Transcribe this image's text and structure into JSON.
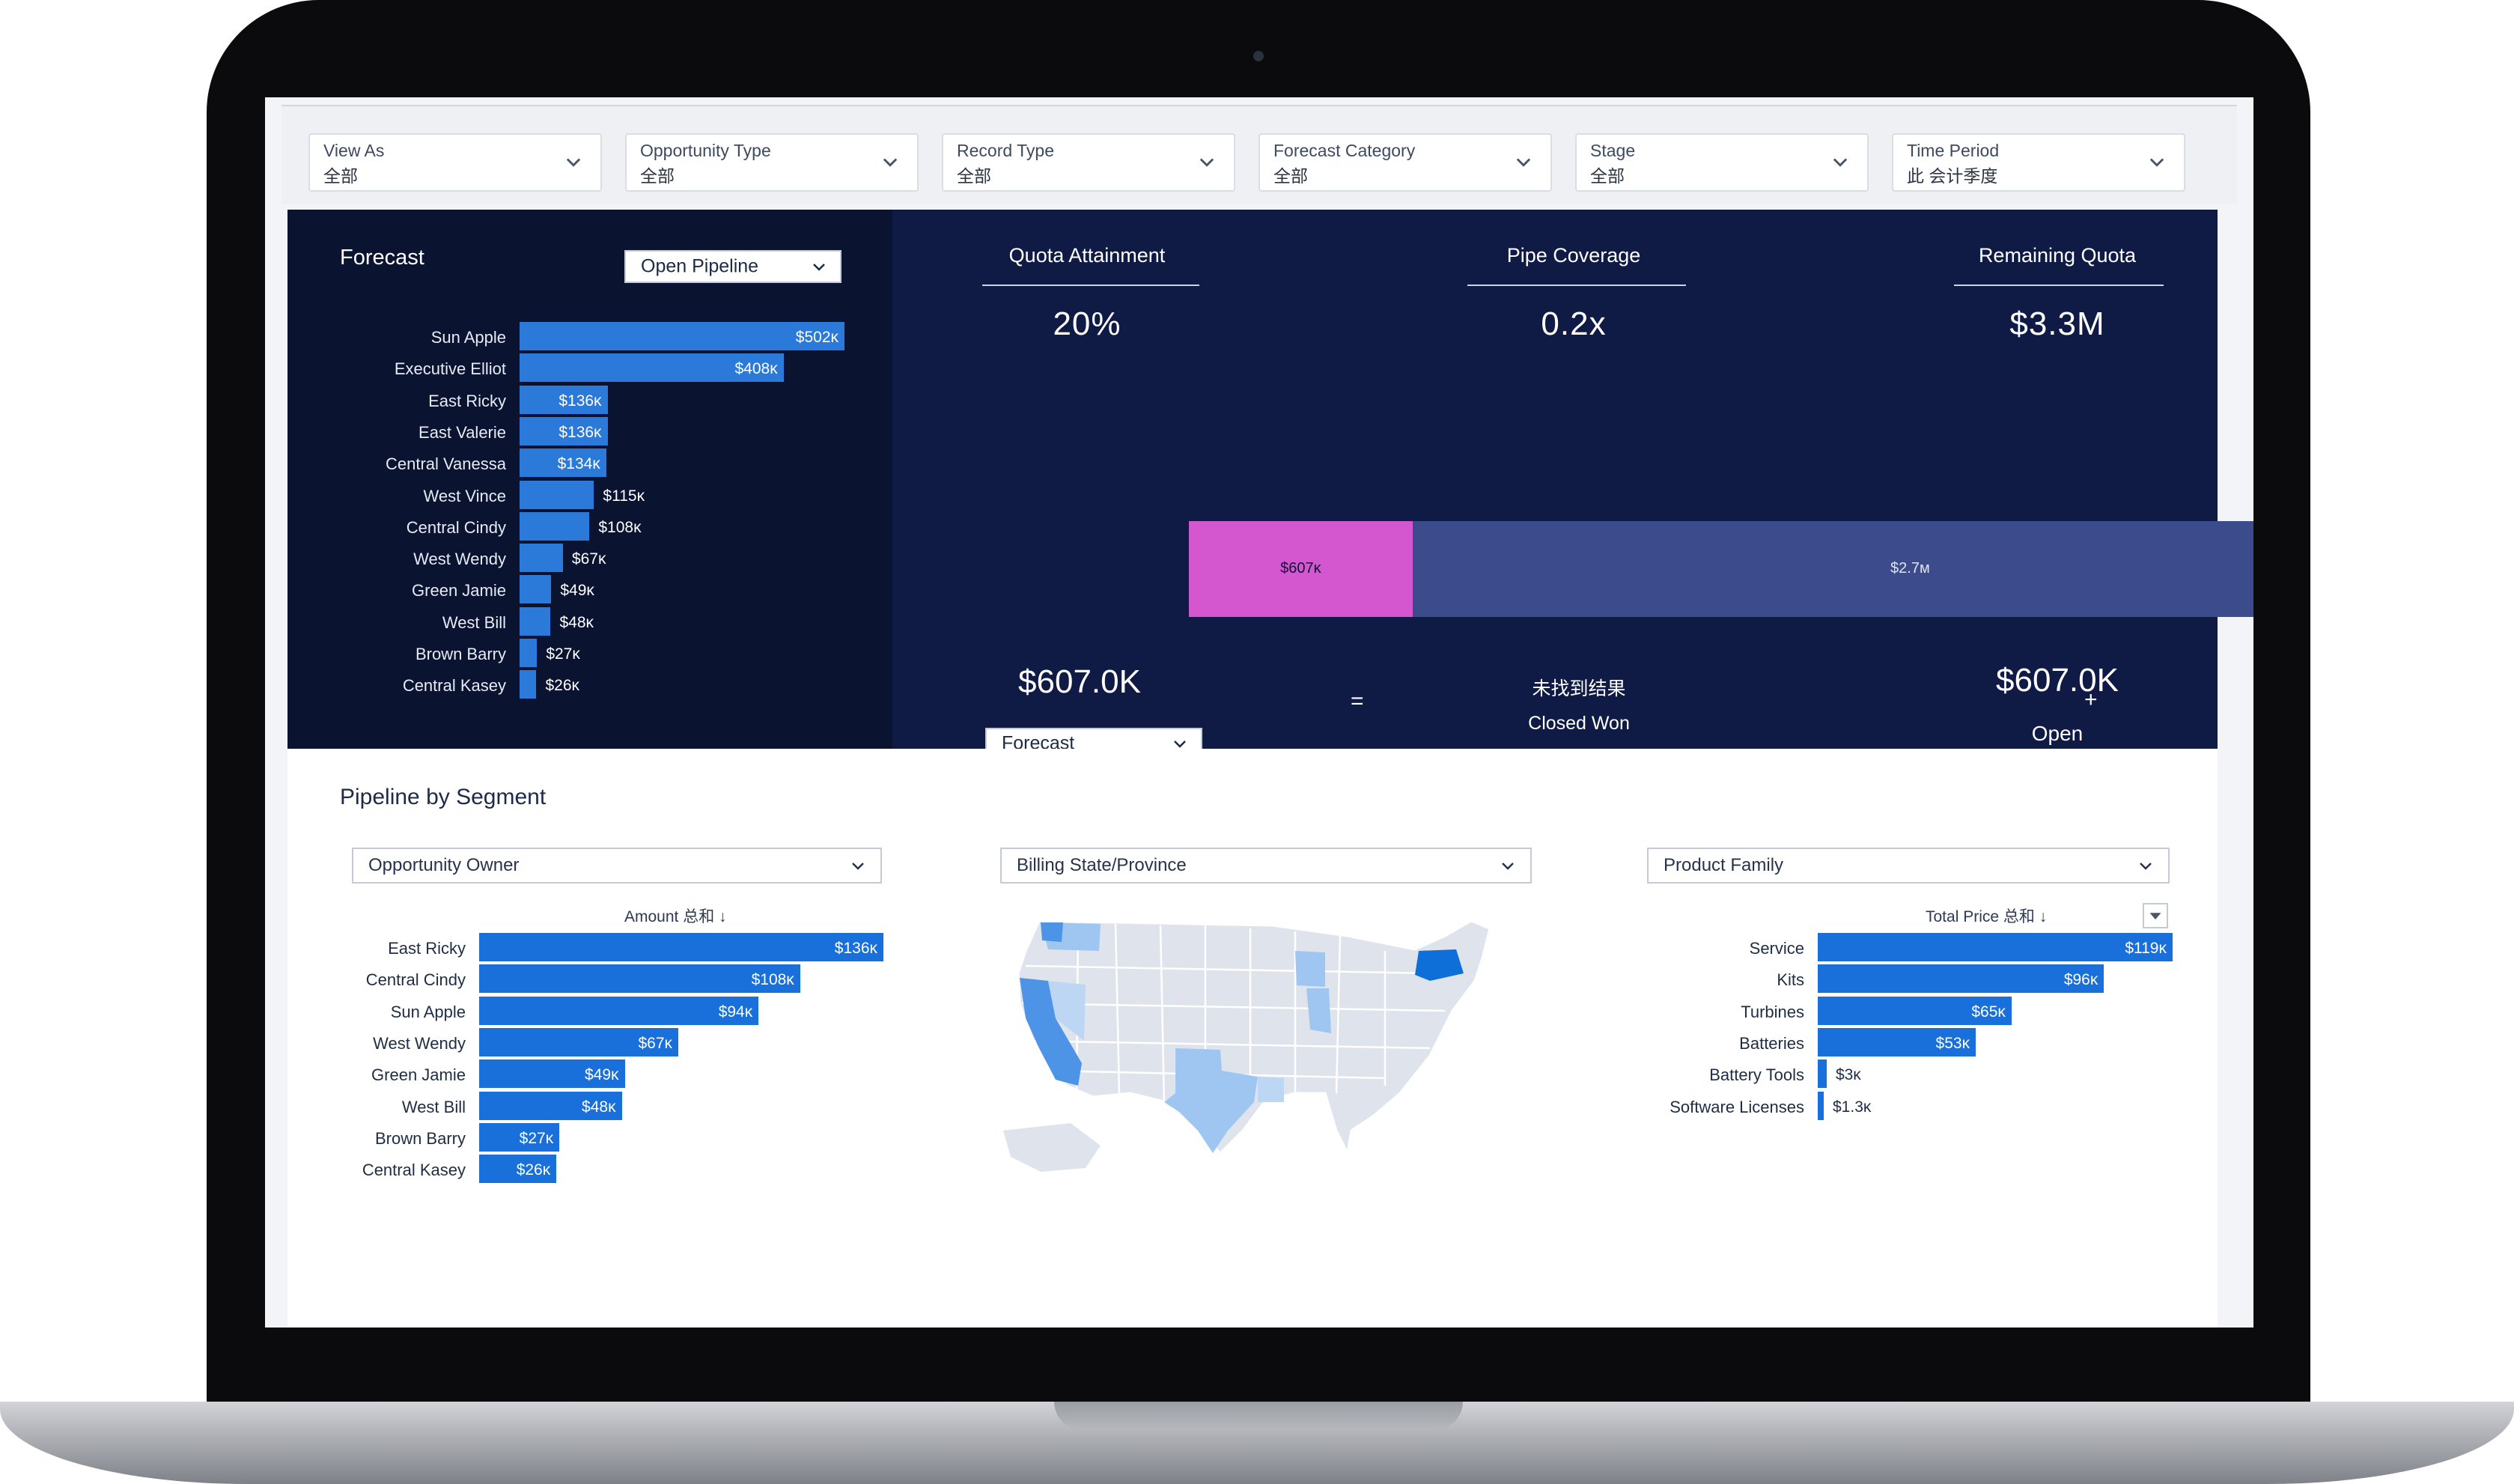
{
  "filters": [
    {
      "label": "View As",
      "value": "全部"
    },
    {
      "label": "Opportunity Type",
      "value": "全部"
    },
    {
      "label": "Record Type",
      "value": "全部"
    },
    {
      "label": "Forecast Category",
      "value": "全部"
    },
    {
      "label": "Stage",
      "value": "全部"
    },
    {
      "label": "Time Period",
      "value": "此 会计季度"
    }
  ],
  "forecast": {
    "title": "Forecast",
    "dropdown": "Open Pipeline",
    "chart_data": {
      "type": "bar",
      "categories": [
        "Sun Apple",
        "Executive Elliot",
        "East Ricky",
        "East Valerie",
        "Central Vanessa",
        "West Vince",
        "Central Cindy",
        "West Wendy",
        "Green Jamie",
        "West Bill",
        "Brown Barry",
        "Central Kasey"
      ],
      "values": [
        502,
        408,
        136,
        136,
        134,
        115,
        108,
        67,
        49,
        48,
        27,
        26
      ],
      "labels": [
        "$502ĸ",
        "$408ĸ",
        "$136ĸ",
        "$136ĸ",
        "$134ĸ",
        "$115ĸ",
        "$108ĸ",
        "$67ĸ",
        "$49ĸ",
        "$48ĸ",
        "$27ĸ",
        "$26ĸ"
      ]
    }
  },
  "kpis": [
    {
      "label": "Quota Attainment",
      "value": "20%"
    },
    {
      "label": "Pipe Coverage",
      "value": "0.2x"
    },
    {
      "label": "Remaining Quota",
      "value": "$3.3M"
    }
  ],
  "stacked": {
    "won_label": "$607ĸ",
    "open_label": "$2.7ᴍ",
    "won_value": 607,
    "open_value": 2700
  },
  "summary": {
    "forecast_value": "$607.0K",
    "forecast_dropdown": "Forecast",
    "equals": "=",
    "closed_won_value": "未找到结果",
    "closed_won_label": "Closed Won",
    "plus": "+",
    "open_value": "$607.0K",
    "open_label": "Open"
  },
  "segment": {
    "title": "Pipeline by Segment",
    "owner": {
      "dropdown": "Opportunity Owner",
      "axis_title": "Amount 总和 ↓",
      "chart_data": {
        "type": "bar",
        "categories": [
          "East Ricky",
          "Central Cindy",
          "Sun Apple",
          "West Wendy",
          "Green Jamie",
          "West Bill",
          "Brown Barry",
          "Central Kasey"
        ],
        "values": [
          136,
          108,
          94,
          67,
          49,
          48,
          27,
          26
        ],
        "labels": [
          "$136ĸ",
          "$108ĸ",
          "$94ĸ",
          "$67ĸ",
          "$49ĸ",
          "$48ĸ",
          "$27ĸ",
          "$26ĸ"
        ]
      }
    },
    "state": {
      "dropdown": "Billing State/Province"
    },
    "product": {
      "dropdown": "Product Family",
      "axis_title": "Total Price 总和 ↓",
      "chart_data": {
        "type": "bar",
        "categories": [
          "Service",
          "Kits",
          "Turbines",
          "Batteries",
          "Battery Tools",
          "Software Licenses"
        ],
        "values": [
          119,
          96,
          65,
          53,
          3,
          1.3
        ],
        "labels": [
          "$119ĸ",
          "$96ĸ",
          "$65ĸ",
          "$53ĸ",
          "$3ĸ",
          "$1.3ĸ"
        ]
      }
    }
  },
  "colors": {
    "bar_dark": "#2b79d8",
    "bar_light": "#1a70db",
    "closed_won": "#d557cf",
    "open": "#3c4b8c",
    "pink_underline": "#e135d7",
    "blue_underline": "#3f8fe6"
  }
}
